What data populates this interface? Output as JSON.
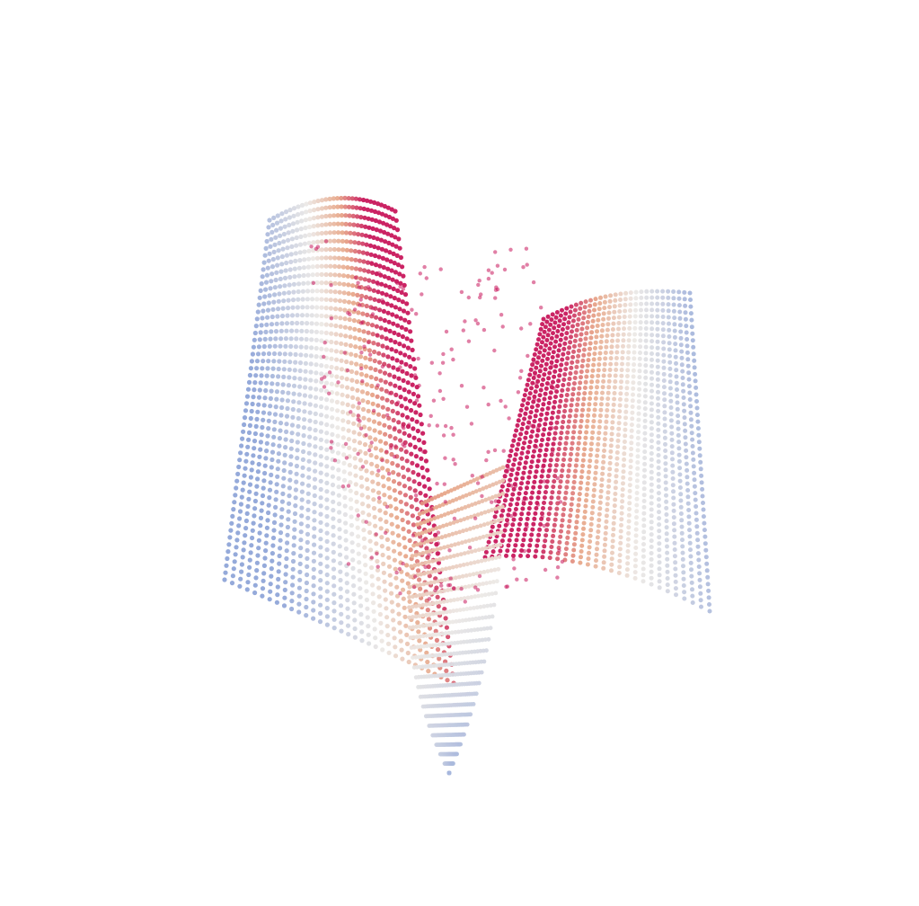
{
  "render": {
    "background": "#ffffff",
    "colormap": {
      "low": "#8fa5d8",
      "mid": "#ece9e6",
      "warm": "#e8a88a",
      "high": "#c8185c"
    },
    "subject": "saddle-point-cloud"
  }
}
